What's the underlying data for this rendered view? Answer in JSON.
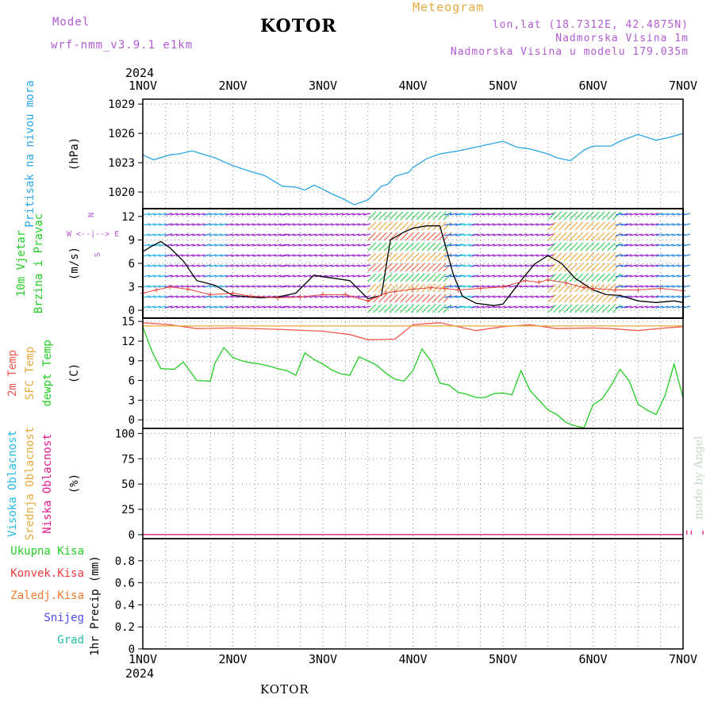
{
  "header": {
    "model_label": "Model",
    "model_name": "wrf-nmm_v3.9.1  e1km",
    "city": "KOTOR",
    "title": "Meteogram",
    "lonlat": "lon,lat (18.7312E, 42.4875N)",
    "elevation": "Nadmorska Visina 1m",
    "model_elevation": "Nadmorska Visina u modelu 179.035m",
    "year": "2024",
    "footer_city": "KOTOR",
    "credit": "made by Angel"
  },
  "colors": {
    "pressure": "#2aa6e6",
    "wind_speed": "#000000",
    "gust": "#e8453c",
    "temp2m": "#ef5a4f",
    "sfc_temp": "#e8a93c",
    "dewpt": "#22cc22",
    "purple_label": "#b25ad4",
    "frame": "#000000",
    "grid": "#888888"
  },
  "x_axis": {
    "ticks": [
      "1NOV",
      "2NOV",
      "3NOV",
      "4NOV",
      "5NOV",
      "6NOV",
      "7NOV"
    ],
    "day_min": 0,
    "day_max": 6
  },
  "chart_data": [
    {
      "type": "line",
      "name": "pressure",
      "label_lines": [
        "Pritisak na nivou mora"
      ],
      "unit": "(hPa)",
      "ylim": [
        1018.3,
        1029.5
      ],
      "yticks": [
        1020,
        1023,
        1026,
        1029
      ],
      "grid": true,
      "series": [
        {
          "name": "Pritisak na nivou mora",
          "x": [
            0,
            0.12,
            0.3,
            0.4,
            0.55,
            0.8,
            1.0,
            1.2,
            1.35,
            1.55,
            1.7,
            1.8,
            1.9,
            2.0,
            2.1,
            2.2,
            2.35,
            2.5,
            2.65,
            2.72,
            2.8,
            2.95,
            3.0,
            3.15,
            3.3,
            3.5,
            3.7,
            3.85,
            4.0,
            4.15,
            4.3,
            4.5,
            4.6,
            4.75,
            4.9,
            5.0,
            5.2,
            5.3,
            5.5,
            5.7,
            5.85,
            6.0
          ],
          "y": [
            1023.8,
            1023.3,
            1023.8,
            1023.9,
            1024.2,
            1023.5,
            1022.7,
            1022.1,
            1021.7,
            1020.6,
            1020.5,
            1020.2,
            1020.7,
            1020.3,
            1019.8,
            1019.4,
            1018.7,
            1019.2,
            1020.6,
            1020.8,
            1021.6,
            1022.0,
            1022.5,
            1023.4,
            1023.9,
            1024.2,
            1024.6,
            1024.9,
            1025.2,
            1024.6,
            1024.4,
            1023.9,
            1023.5,
            1023.2,
            1024.3,
            1024.7,
            1024.7,
            1025.2,
            1025.9,
            1025.3,
            1025.6,
            1026.0
          ]
        }
      ]
    },
    {
      "type": "line",
      "name": "wind",
      "label_lines": [
        "10m Vjetar",
        "Brzina i Pravac"
      ],
      "unit": "(m/s)",
      "ylim": [
        -1,
        13
      ],
      "yticks": [
        0,
        3,
        6,
        9,
        12
      ],
      "grid": true,
      "compass": [
        "N",
        "W",
        "E",
        "S"
      ],
      "series": [
        {
          "name": "speed",
          "x": [
            0,
            0.1,
            0.2,
            0.3,
            0.45,
            0.6,
            0.8,
            1.0,
            1.3,
            1.5,
            1.7,
            1.9,
            2.0,
            2.3,
            2.5,
            2.65,
            2.75,
            2.9,
            3.0,
            3.15,
            3.3,
            3.45,
            3.55,
            3.7,
            3.9,
            4.0,
            4.2,
            4.35,
            4.5,
            4.65,
            4.8,
            5.0,
            5.15,
            5.3,
            5.5,
            5.7,
            5.9,
            6.0
          ],
          "y": [
            7.5,
            8.2,
            8.8,
            8.0,
            6.3,
            3.8,
            3.2,
            1.9,
            1.6,
            1.7,
            2.2,
            4.5,
            4.3,
            3.8,
            1.5,
            1.9,
            9.0,
            10.0,
            10.5,
            10.8,
            10.8,
            4.5,
            1.8,
            0.9,
            0.6,
            0.8,
            3.8,
            5.9,
            7.0,
            6.0,
            4.1,
            2.6,
            2.0,
            1.9,
            1.2,
            1.0,
            1.2,
            1.0
          ]
        },
        {
          "name": "gust",
          "x": [
            0,
            0.15,
            0.3,
            0.5,
            0.75,
            1.0,
            1.2,
            1.5,
            1.75,
            2.0,
            2.25,
            2.5,
            2.7,
            2.8,
            3.0,
            3.2,
            3.35,
            3.5,
            3.75,
            4.0,
            4.25,
            4.4,
            4.5,
            4.7,
            4.9,
            5.0,
            5.25,
            5.5,
            5.75,
            6.0
          ],
          "y": [
            2.2,
            2.6,
            3.0,
            2.7,
            2.0,
            2.2,
            1.8,
            1.6,
            1.7,
            2.0,
            2.0,
            1.2,
            2.2,
            2.4,
            2.7,
            2.9,
            2.8,
            2.6,
            2.8,
            3.0,
            3.8,
            3.6,
            3.9,
            3.5,
            2.9,
            2.8,
            2.6,
            2.6,
            2.8,
            2.5
          ]
        }
      ]
    },
    {
      "type": "line",
      "name": "temperature",
      "label_lines": [
        "2m Temp",
        "SFC Temp",
        "dewpt Temp"
      ],
      "unit": "(C)",
      "ylim": [
        -1.3,
        15.5
      ],
      "yticks": [
        0,
        3,
        6,
        9,
        12,
        15
      ],
      "grid": true,
      "series": [
        {
          "name": "2m Temp",
          "x": [
            0,
            0.3,
            0.6,
            1.0,
            1.5,
            2.0,
            2.3,
            2.5,
            2.8,
            3.0,
            3.3,
            3.7,
            4.0,
            4.3,
            4.6,
            5.0,
            5.2,
            5.5,
            5.8,
            6.0
          ],
          "y": [
            14.8,
            14.5,
            13.9,
            14.0,
            13.8,
            13.5,
            13.0,
            12.2,
            12.3,
            14.5,
            14.8,
            13.6,
            14.2,
            14.5,
            13.9,
            14.0,
            13.9,
            13.6,
            14.0,
            14.2
          ]
        },
        {
          "name": "SFC Temp",
          "x": [
            0,
            6.0
          ],
          "y": [
            14.3,
            14.3
          ]
        },
        {
          "name": "dewpt Temp",
          "x": [
            0,
            0.1,
            0.2,
            0.35,
            0.45,
            0.6,
            0.75,
            0.8,
            0.9,
            1.0,
            1.1,
            1.2,
            1.3,
            1.4,
            1.5,
            1.6,
            1.7,
            1.8,
            1.9,
            2.0,
            2.1,
            2.2,
            2.3,
            2.4,
            2.5,
            2.6,
            2.7,
            2.8,
            2.9,
            3.0,
            3.1,
            3.2,
            3.3,
            3.4,
            3.5,
            3.6,
            3.7,
            3.8,
            3.9,
            4.0,
            4.1,
            4.2,
            4.3,
            4.4,
            4.5,
            4.6,
            4.7,
            4.8,
            4.9,
            5.0,
            5.1,
            5.2,
            5.3,
            5.4,
            5.5,
            5.6,
            5.7,
            5.8,
            5.9,
            6.0
          ],
          "y": [
            14.2,
            10.5,
            7.8,
            7.7,
            8.8,
            6.0,
            5.9,
            8.6,
            11.0,
            9.5,
            9.0,
            8.7,
            8.5,
            8.2,
            7.8,
            7.5,
            6.8,
            10.2,
            9.2,
            8.5,
            7.6,
            7.0,
            6.8,
            9.6,
            9.0,
            8.3,
            7.1,
            6.2,
            5.9,
            7.5,
            10.8,
            9.0,
            5.6,
            5.3,
            4.2,
            3.9,
            3.4,
            3.4,
            4.0,
            4.1,
            3.8,
            7.5,
            4.5,
            3.0,
            1.5,
            0.8,
            -0.4,
            -0.9,
            -1.2,
            2.3,
            3.2,
            5.2,
            7.7,
            6.0,
            2.4,
            1.5,
            0.8,
            3.7,
            8.5,
            3.4
          ]
        }
      ]
    },
    {
      "type": "line",
      "name": "cloud",
      "label_lines": [
        "Visoka Oblacnost",
        "Srednja Oblacnost",
        "Niska Oblacnost"
      ],
      "unit": "(%)",
      "ylim": [
        -4,
        105
      ],
      "yticks": [
        0,
        25,
        50,
        75,
        100
      ],
      "grid": true,
      "series": [
        {
          "name": "Visoka Oblacnost",
          "x": [
            0,
            6.0
          ],
          "y": [
            0,
            0
          ]
        },
        {
          "name": "Srednja Oblacnost",
          "x": [
            0,
            6.0
          ],
          "y": [
            0,
            0
          ]
        },
        {
          "name": "Niska Oblacnost",
          "x": [
            0,
            6.0
          ],
          "y": [
            0,
            0
          ]
        }
      ]
    },
    {
      "type": "bar",
      "name": "precip",
      "label_lines": [
        "Ukupna Kisa",
        "Konvek.Kisa",
        "Zaledj.Kisa",
        "Snijeg",
        "Grad"
      ],
      "unit": "1hr Precip (mm)",
      "ylim": [
        0,
        1
      ],
      "yticks": [
        0,
        0.2,
        0.4,
        0.6,
        0.8
      ],
      "grid": true,
      "series": []
    }
  ]
}
